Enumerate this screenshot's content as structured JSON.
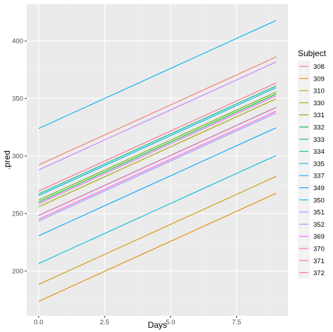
{
  "chart_data": {
    "type": "line",
    "xlabel": "Days",
    "ylabel": ".pred",
    "xlim": [
      -0.45,
      9.45
    ],
    "ylim": [
      161,
      432
    ],
    "x_ticks": [
      0.0,
      2.5,
      5.0,
      7.5
    ],
    "x_tick_labels": [
      "0.0",
      "2.5",
      "5.0",
      "7.5"
    ],
    "y_ticks": [
      200,
      250,
      300,
      350,
      400
    ],
    "y_tick_labels": [
      "200",
      "250",
      "300",
      "350",
      "400"
    ],
    "grid": true,
    "legend": {
      "title": "Subject",
      "position": "right"
    },
    "series": [
      {
        "name": "308",
        "color": "#F8766D",
        "x": [
          0,
          9
        ],
        "y": [
          292.2,
          386.2
        ]
      },
      {
        "name": "309",
        "color": "#E58700",
        "x": [
          0,
          9
        ],
        "y": [
          173.6,
          267.6
        ]
      },
      {
        "name": "310",
        "color": "#C99800",
        "x": [
          0,
          9
        ],
        "y": [
          188.3,
          282.3
        ]
      },
      {
        "name": "330",
        "color": "#A3A500",
        "x": [
          0,
          9
        ],
        "y": [
          255.8,
          349.8
        ]
      },
      {
        "name": "331",
        "color": "#6BB100",
        "x": [
          0,
          9
        ],
        "y": [
          261.6,
          355.6
        ]
      },
      {
        "name": "332",
        "color": "#00BA38",
        "x": [
          0,
          9
        ],
        "y": [
          259.9,
          353.9
        ]
      },
      {
        "name": "333",
        "color": "#00BF7D",
        "x": [
          0,
          9
        ],
        "y": [
          267.0,
          361.0
        ]
      },
      {
        "name": "334",
        "color": "#00C0AF",
        "x": [
          0,
          9
        ],
        "y": [
          248.3,
          342.3
        ]
      },
      {
        "name": "335",
        "color": "#00BCD8",
        "x": [
          0,
          9
        ],
        "y": [
          206.5,
          300.5
        ]
      },
      {
        "name": "337",
        "color": "#00B0F6",
        "x": [
          0,
          9
        ],
        "y": [
          323.9,
          417.9
        ]
      },
      {
        "name": "349",
        "color": "#00A5FF",
        "x": [
          0,
          9
        ],
        "y": [
          230.6,
          324.6
        ]
      },
      {
        "name": "350",
        "color": "#00B0F6",
        "x": [
          0,
          9
        ],
        "y": [
          265.5,
          359.5
        ]
      },
      {
        "name": "351",
        "color": "#9590FF",
        "x": [
          0,
          9
        ],
        "y": [
          243.5,
          337.5
        ]
      },
      {
        "name": "352",
        "color": "#C77CFF",
        "x": [
          0,
          9
        ],
        "y": [
          287.8,
          381.8
        ]
      },
      {
        "name": "369",
        "color": "#E76BF3",
        "x": [
          0,
          9
        ],
        "y": [
          258.4,
          352.4
        ]
      },
      {
        "name": "370",
        "color": "#FA62DB",
        "x": [
          0,
          9
        ],
        "y": [
          245.0,
          339.0
        ]
      },
      {
        "name": "371",
        "color": "#FF62BC",
        "x": [
          0,
          9
        ],
        "y": [
          248.2,
          342.2
        ]
      },
      {
        "name": "372",
        "color": "#FF6C91",
        "x": [
          0,
          9
        ],
        "y": [
          269.5,
          363.5
        ]
      }
    ]
  }
}
